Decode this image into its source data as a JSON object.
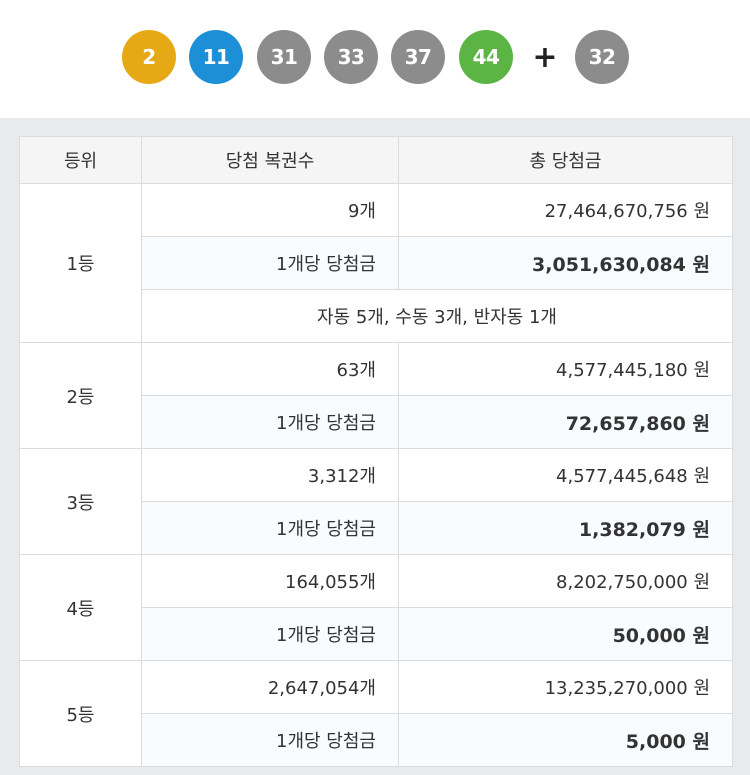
{
  "winning_numbers": {
    "balls": [
      {
        "number": "2",
        "color": "#e6a915"
      },
      {
        "number": "11",
        "color": "#1c8fd6"
      },
      {
        "number": "31",
        "color": "#8c8c8c"
      },
      {
        "number": "33",
        "color": "#8c8c8c"
      },
      {
        "number": "37",
        "color": "#8c8c8c"
      },
      {
        "number": "44",
        "color": "#5cb445"
      }
    ],
    "plus_sign": "+",
    "bonus": {
      "number": "32",
      "color": "#8c8c8c"
    }
  },
  "table": {
    "headers": {
      "rank": "등위",
      "winners": "당첨 복권수",
      "total": "총 당첨금"
    },
    "ranks": [
      {
        "rank": "1등",
        "count": "9개",
        "total": "27,464,670,756 원",
        "per_label": "1개당 당첨금",
        "per_value": "3,051,630,084 원",
        "note": "자동 5개, 수동 3개, 반자동 1개"
      },
      {
        "rank": "2등",
        "count": "63개",
        "total": "4,577,445,180 원",
        "per_label": "1개당 당첨금",
        "per_value": "72,657,860 원"
      },
      {
        "rank": "3등",
        "count": "3,312개",
        "total": "4,577,445,648 원",
        "per_label": "1개당 당첨금",
        "per_value": "1,382,079 원"
      },
      {
        "rank": "4등",
        "count": "164,055개",
        "total": "8,202,750,000 원",
        "per_label": "1개당 당첨금",
        "per_value": "50,000 원"
      },
      {
        "rank": "5등",
        "count": "2,647,054개",
        "total": "13,235,270,000 원",
        "per_label": "1개당 당첨금",
        "per_value": "5,000 원"
      }
    ]
  }
}
